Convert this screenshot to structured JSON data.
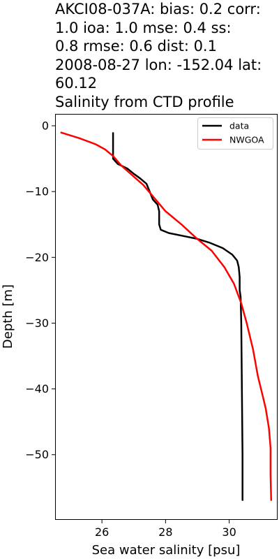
{
  "title_lines": [
    "AKCI08-037A: bias: 0.2  corr:",
    "1.0  ioa: 1.0  mse: 0.4  ss:",
    "0.8  rmse: 0.6  dist: 0.1",
    "2008-08-27 lon: -152.04 lat:",
    "60.12",
    "Salinity from CTD profile"
  ],
  "chart_data": {
    "type": "line",
    "title": "AKCI08-037A: bias: 0.2  corr: 1.0  ioa: 1.0  mse: 0.4  ss: 0.8  rmse: 0.6  dist: 0.1 2008-08-27 lon: -152.04 lat: 60.12 Salinity from CTD profile",
    "xlabel": "Sea water salinity [psu]",
    "ylabel": "Depth [m]",
    "xlim": [
      24.55,
      31.5
    ],
    "ylim": [
      -59.8,
      1.7
    ],
    "xticks": [
      26,
      28,
      30
    ],
    "yticks": [
      0,
      -10,
      -20,
      -30,
      -40,
      -50
    ],
    "xtick_labels": [
      "26",
      "28",
      "30"
    ],
    "ytick_labels": [
      "0",
      "−10",
      "−20",
      "−30",
      "−40",
      "−50"
    ],
    "grid": false,
    "legend_position": "top-right",
    "series": [
      {
        "name": "data",
        "color": "#000000",
        "points": [
          [
            26.35,
            -1.0
          ],
          [
            26.35,
            -3.0
          ],
          [
            26.35,
            -5.0
          ],
          [
            26.5,
            -5.8
          ],
          [
            26.8,
            -6.5
          ],
          [
            27.0,
            -7.3
          ],
          [
            27.2,
            -8.0
          ],
          [
            27.4,
            -8.8
          ],
          [
            27.5,
            -10.0
          ],
          [
            27.6,
            -11.2
          ],
          [
            27.75,
            -12.0
          ],
          [
            27.8,
            -13.0
          ],
          [
            27.8,
            -15.0
          ],
          [
            27.85,
            -15.8
          ],
          [
            28.1,
            -16.3
          ],
          [
            28.5,
            -16.7
          ],
          [
            29.0,
            -17.2
          ],
          [
            29.4,
            -17.8
          ],
          [
            29.8,
            -18.6
          ],
          [
            30.1,
            -19.6
          ],
          [
            30.25,
            -20.5
          ],
          [
            30.3,
            -21.5
          ],
          [
            30.33,
            -23.0
          ],
          [
            30.33,
            -25.0
          ],
          [
            30.36,
            -26.0
          ],
          [
            30.38,
            -30.0
          ],
          [
            30.4,
            -40.0
          ],
          [
            30.42,
            -50.0
          ],
          [
            30.42,
            -57.0
          ]
        ]
      },
      {
        "name": "NWGOA",
        "color": "#ff0000",
        "points": [
          [
            24.7,
            -1.0
          ],
          [
            25.3,
            -1.9
          ],
          [
            25.8,
            -2.8
          ],
          [
            26.1,
            -3.6
          ],
          [
            26.35,
            -4.6
          ],
          [
            26.6,
            -6.0
          ],
          [
            26.9,
            -7.3
          ],
          [
            27.3,
            -9.0
          ],
          [
            27.65,
            -11.0
          ],
          [
            28.0,
            -13.0
          ],
          [
            28.5,
            -15.0
          ],
          [
            28.95,
            -17.0
          ],
          [
            29.45,
            -19.0
          ],
          [
            29.85,
            -21.5
          ],
          [
            30.15,
            -24.0
          ],
          [
            30.38,
            -27.0
          ],
          [
            30.55,
            -30.0
          ],
          [
            30.75,
            -34.0
          ],
          [
            30.9,
            -38.0
          ],
          [
            31.05,
            -41.0
          ],
          [
            31.15,
            -43.0
          ],
          [
            31.25,
            -46.0
          ],
          [
            31.3,
            -49.0
          ],
          [
            31.3,
            -53.0
          ],
          [
            31.32,
            -57.0
          ]
        ]
      }
    ]
  }
}
